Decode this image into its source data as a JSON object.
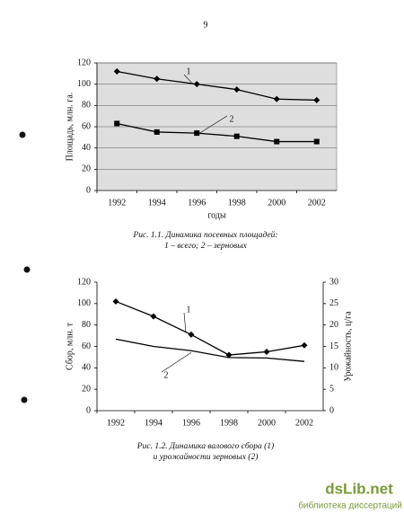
{
  "page_number": "9",
  "chart_data": [
    {
      "type": "line",
      "categories": [
        "1992",
        "1994",
        "1996",
        "1998",
        "2000",
        "2002"
      ],
      "y_label": "Площадь, млн. га.",
      "x_label": "годы",
      "series": [
        {
          "name": "1",
          "color": "#000000",
          "marker": "diamond",
          "values": [
            112,
            105,
            100,
            95,
            86,
            85
          ]
        },
        {
          "name": "2",
          "color": "#000000",
          "marker": "square",
          "values": [
            63,
            55,
            54,
            51,
            46,
            46
          ]
        }
      ],
      "ylim": [
        0,
        120
      ],
      "yticks": [
        0,
        20,
        40,
        60,
        80,
        100,
        120
      ],
      "grid": true,
      "plot_background": "#dedede",
      "caption": [
        "Рис. 1.1. Динамика посевных площадей:",
        "1 – всего; 2 – зерновых"
      ]
    },
    {
      "type": "line",
      "categories": [
        "1992",
        "1994",
        "1996",
        "1998",
        "2000",
        "2002"
      ],
      "y_label": "Сбор, млн. т",
      "y2_label": "Урожайность, ц/га",
      "series": [
        {
          "name": "1",
          "color": "#000000",
          "marker": "diamond",
          "values": [
            102,
            88,
            71,
            52,
            55,
            61
          ]
        },
        {
          "name": "2",
          "color": "#000000",
          "marker": "none",
          "axis": "y2",
          "values": [
            16.7,
            15,
            14,
            12.4,
            12.3,
            11.5
          ]
        }
      ],
      "ylim": [
        0,
        120
      ],
      "yticks": [
        0,
        20,
        40,
        60,
        80,
        100,
        120
      ],
      "y2lim": [
        0,
        30
      ],
      "y2ticks": [
        0,
        5,
        10,
        15,
        20,
        25,
        30
      ],
      "grid": false,
      "plot_background": "#ffffff",
      "caption": [
        "Рис. 1.2. Динамика валового сбора (1)",
        "и урожайности зерновых (2)"
      ]
    }
  ],
  "watermark": {
    "logo": "dsLib.net",
    "tagline": "библиотека диссертаций"
  }
}
